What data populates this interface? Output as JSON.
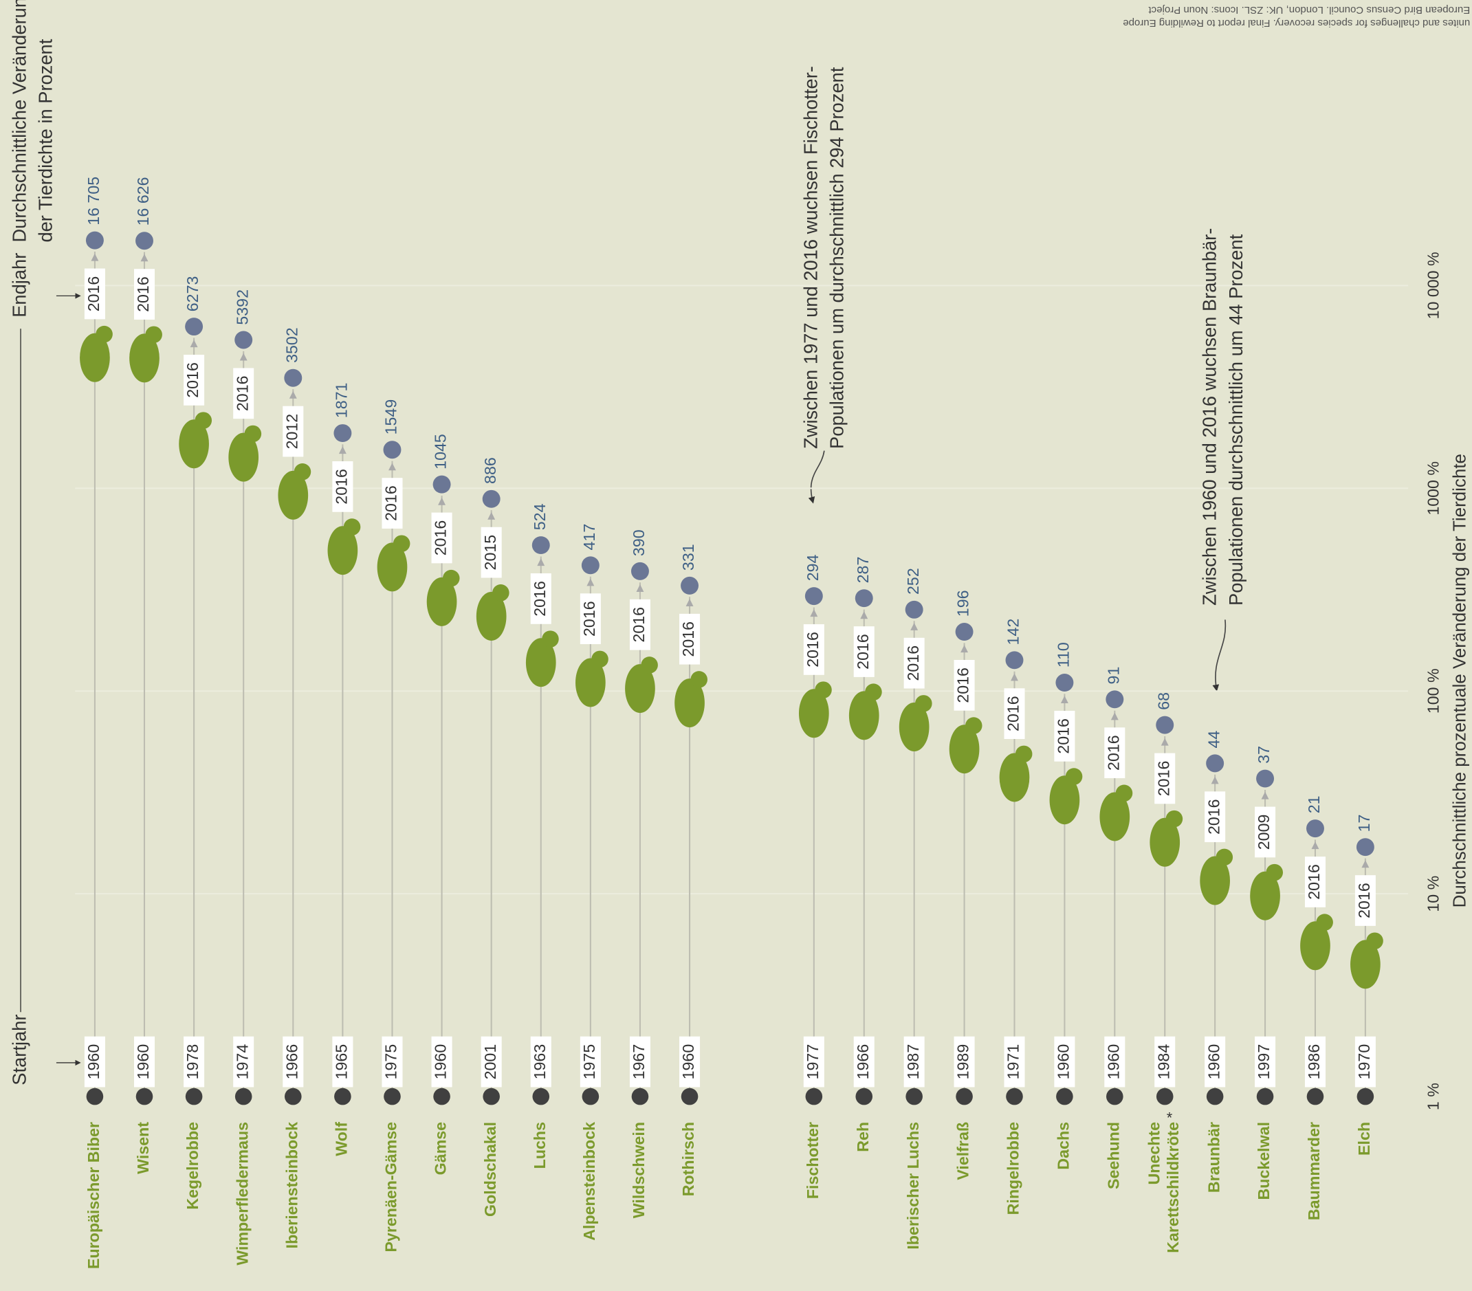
{
  "chart_data": {
    "type": "dumbbell",
    "log_scale": true,
    "grid": true,
    "ylim": [
      1,
      100000
    ],
    "yticks": [
      {
        "value": 1,
        "label": "1 %"
      },
      {
        "value": 10,
        "label": "10 %"
      },
      {
        "value": 100,
        "label": "100 %"
      },
      {
        "value": 1000,
        "label": "1000 %"
      },
      {
        "value": 10000,
        "label": "10 000 %"
      }
    ],
    "y_axis_title": "Durchschnittliche prozentuale Veränderung der Tierdichte",
    "legend": {
      "end_label": "Endjahr",
      "start_label": "Startjahr",
      "value_label": [
        "Durchschnittliche Veränderung",
        "der Tierdichte in Prozent"
      ]
    },
    "categories": [
      [
        "Europäischer Biber"
      ],
      [
        "Wisent"
      ],
      [
        "Kegelrobbe"
      ],
      [
        "Wimperfledermaus"
      ],
      [
        "Iberiensteinbock"
      ],
      [
        "Wolf"
      ],
      [
        "Pyrenäen-Gämse"
      ],
      [
        "Gämse"
      ],
      [
        "Goldschakal"
      ],
      [
        "Luchs"
      ],
      [
        "Alpensteinbock"
      ],
      [
        "Wildschwein"
      ],
      [
        "Rothirsch"
      ],
      [
        "Fischotter"
      ],
      [
        "Reh"
      ],
      [
        "Iberischer Luchs"
      ],
      [
        "Vielfraß"
      ],
      [
        "Ringelrobbe"
      ],
      [
        "Dachs"
      ],
      [
        "Seehund"
      ],
      [
        "Unechte",
        "Karettschildkröte"
      ],
      [
        "Braunbär"
      ],
      [
        "Buckelwal"
      ],
      [
        "Baummarder"
      ],
      [
        "Elch"
      ]
    ],
    "note_marker": "*",
    "start_years": [
      1960,
      1960,
      1978,
      1974,
      1966,
      1965,
      1975,
      1960,
      2001,
      1963,
      1975,
      1967,
      1960,
      1977,
      1966,
      1987,
      1989,
      1971,
      1960,
      1960,
      1984,
      1960,
      1997,
      1986,
      1970
    ],
    "end_years": [
      2016,
      2016,
      2016,
      2016,
      2012,
      2016,
      2016,
      2016,
      2015,
      2016,
      2016,
      2016,
      2016,
      2016,
      2016,
      2016,
      2016,
      2016,
      2016,
      2016,
      2016,
      2016,
      2009,
      2016,
      2016
    ],
    "values": [
      16705,
      16626,
      6273,
      5392,
      3502,
      1871,
      1549,
      1045,
      886,
      524,
      417,
      390,
      331,
      294,
      287,
      252,
      196,
      142,
      110,
      91,
      68,
      44,
      37,
      21,
      17
    ],
    "value_labels": [
      "16 705",
      "16 626",
      "6273",
      "5392",
      "3502",
      "1871",
      "1549",
      "1045",
      "886",
      "524",
      "417",
      "390",
      "331",
      "294",
      "287",
      "252",
      "196",
      "142",
      "110",
      "91",
      "68",
      "44",
      "37",
      "21",
      "17"
    ],
    "colors": {
      "category": "#7b9a2c",
      "end_dot": "#6b7795",
      "start_dot": "#404040",
      "value_label": "#3e5f85",
      "stem": "#bdbdb1"
    },
    "annotations": [
      {
        "lines": [
          "Zwischen 1977 und 2016 wuchsen Fischotter-",
          "Populationen um durchschnittlich 294 Prozent"
        ]
      },
      {
        "lines": [
          "Zwischen 1960 und 2016 wuchsen Braunbär-",
          "Populationen durchschnittlich um 44 Prozent"
        ]
      }
    ],
    "source": [
      "unites and challenges for species recovery. Final report to Rewilding Europe",
      "European Bird Census Council. London, UK: ZSL. Icons: Noun Project"
    ]
  }
}
